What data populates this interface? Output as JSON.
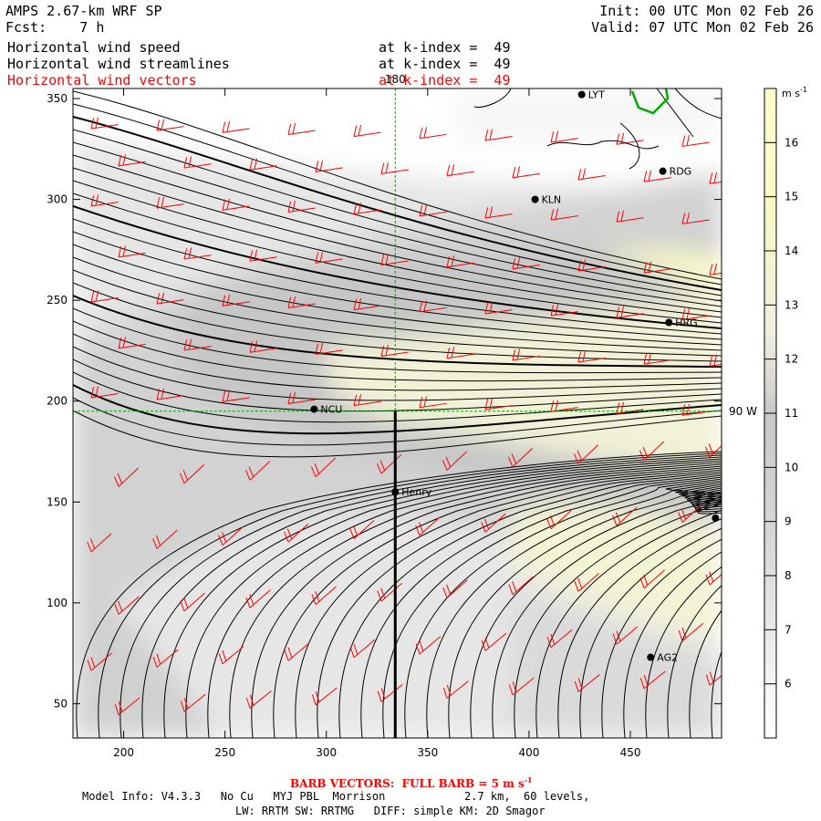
{
  "header": {
    "model_title": "AMPS 2.67-km WRF SP",
    "forecast": "Fcst:    7 h",
    "init": "Init: 00 UTC Mon 02 Feb 26",
    "valid": "Valid: 07 UTC Mon 02 Feb 26",
    "field_lines": [
      {
        "name": "Horizontal wind speed",
        "level": "at k-index =  49"
      },
      {
        "name": "Horizontal wind streamlines",
        "level": "at k-index =  49"
      },
      {
        "name": "Horizontal wind vectors",
        "level": "at k-index =  49"
      }
    ]
  },
  "colors": {
    "vectors": "#ff0000",
    "streamlines": "#000000",
    "coast": "#00aa00",
    "gridline": "#00aa00"
  },
  "chart_data": {
    "type": "heatmap",
    "xlim": [
      175,
      495
    ],
    "ylim": [
      33,
      355
    ],
    "x_ticks": [
      200,
      250,
      300,
      350,
      400,
      450
    ],
    "y_ticks": [
      50,
      100,
      150,
      200,
      250,
      300,
      350
    ],
    "grid_lines": {
      "meridian_label": "180",
      "parallel_label": "90 W",
      "meridian_x": 334,
      "parallel_y": 195
    },
    "transect_x": 334,
    "transect_y_range": [
      33,
      195
    ],
    "stations": [
      {
        "name": "LYT",
        "x": 426,
        "y": 352
      },
      {
        "name": "RDG",
        "x": 466,
        "y": 314
      },
      {
        "name": "KLN",
        "x": 403,
        "y": 300
      },
      {
        "name": "HRG",
        "x": 469,
        "y": 239
      },
      {
        "name": "NCU",
        "x": 294,
        "y": 196
      },
      {
        "name": "Henry",
        "x": 334,
        "y": 155
      },
      {
        "name": "",
        "x": 492,
        "y": 142
      },
      {
        "name": "AG2",
        "x": 460,
        "y": 73
      }
    ],
    "colorbar": {
      "unit": "m s",
      "unit_exp": "-1",
      "levels": [
        6,
        7,
        8,
        9,
        10,
        11,
        12,
        13,
        14,
        15,
        16
      ],
      "range": [
        5,
        17
      ]
    },
    "barb_legend": "BARB VECTORS:  FULL BARB = 5 m s",
    "barb_legend_exp": "-1"
  },
  "footer": {
    "line1": "Model Info: V4.3.3   No Cu   MYJ PBL  Morrison            2.7 km,  60 levels,",
    "line2": "LW: RRTM SW: RRTMG   DIFF: simple KM: 2D Smagor"
  }
}
